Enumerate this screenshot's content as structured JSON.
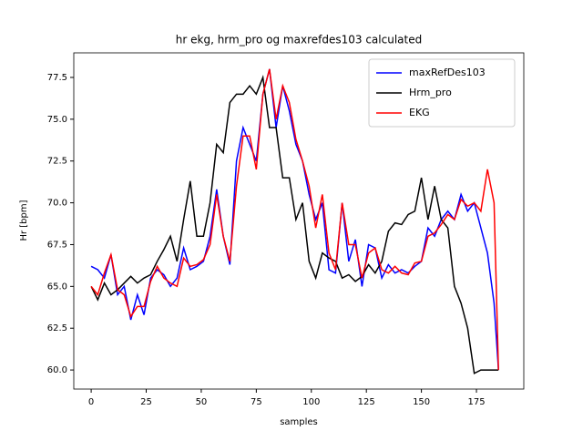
{
  "chart_data": {
    "type": "line",
    "title": "hr ekg, hrm_pro og maxrefdes103 calculated",
    "x_label": "samples",
    "y_label": "Hr [bpm]",
    "x": [
      0,
      3,
      6,
      9,
      12,
      15,
      18,
      21,
      24,
      27,
      30,
      33,
      36,
      39,
      42,
      45,
      48,
      51,
      54,
      57,
      60,
      63,
      66,
      69,
      72,
      75,
      78,
      81,
      84,
      87,
      90,
      93,
      96,
      99,
      102,
      105,
      108,
      111,
      114,
      117,
      120,
      123,
      126,
      129,
      132,
      135,
      138,
      141,
      144,
      147,
      150,
      153,
      156,
      159,
      162,
      165,
      168,
      171,
      174,
      177,
      180,
      183,
      185
    ],
    "series": [
      {
        "name": "maxRefDes103",
        "color": "#0000ff",
        "values": [
          66.2,
          66.0,
          65.5,
          66.9,
          64.5,
          65,
          63,
          64.5,
          63.3,
          65.5,
          66,
          65.7,
          65,
          65.5,
          67.3,
          66,
          66.2,
          66.5,
          68,
          70.8,
          68,
          66.3,
          72.5,
          74.5,
          73.5,
          72.5,
          76.5,
          78,
          74.5,
          77,
          75.5,
          73.5,
          72.5,
          70.5,
          69,
          70,
          66,
          65.8,
          70,
          66.5,
          67.8,
          65,
          67.5,
          67.3,
          65.5,
          66.3,
          65.8,
          66,
          65.8,
          66.2,
          66.5,
          68.5,
          68,
          69,
          69.5,
          69,
          70.5,
          69.5,
          70,
          68.5,
          67,
          64,
          60
        ]
      },
      {
        "name": "Hrm_pro",
        "color": "#000000",
        "values": [
          65,
          64.2,
          65.2,
          64.5,
          64.8,
          65.2,
          65.6,
          65.2,
          65.5,
          65.7,
          66.5,
          67.2,
          68,
          66.5,
          69,
          71.3,
          68,
          68,
          70,
          73.5,
          73,
          76,
          76.5,
          76.5,
          77,
          76.5,
          77.5,
          74.5,
          74.5,
          71.5,
          71.5,
          69,
          70,
          66.5,
          65.5,
          67,
          66.7,
          66.5,
          65.5,
          65.7,
          65.3,
          65.6,
          66.3,
          65.8,
          66.5,
          68.3,
          68.8,
          68.7,
          69.3,
          69.5,
          71.5,
          69,
          71,
          69,
          68.5,
          65,
          64,
          62.5,
          59.8,
          60,
          60,
          60,
          60
        ]
      },
      {
        "name": "EKG",
        "color": "#ff0000",
        "values": [
          65,
          64.5,
          65.8,
          66.9,
          64.8,
          64.5,
          63.2,
          63.8,
          63.8,
          65.3,
          66.2,
          65.5,
          65.2,
          65,
          66.7,
          66.2,
          66.3,
          66.6,
          67.5,
          70.5,
          68,
          66.5,
          71,
          74,
          74,
          72,
          76.5,
          78,
          75,
          77,
          76,
          73.8,
          72.5,
          71,
          68.5,
          70.5,
          67,
          66,
          70,
          67.5,
          67.5,
          65.5,
          67,
          67.3,
          66,
          65.8,
          66.2,
          65.8,
          65.7,
          66.4,
          66.5,
          68,
          68.2,
          68.7,
          69.3,
          69,
          70.2,
          69.8,
          70,
          69.5,
          72,
          70,
          60
        ]
      }
    ],
    "xlim": [
      -7.9,
      196.5
    ],
    "xticks": [
      0,
      25,
      50,
      75,
      100,
      125,
      150,
      175
    ],
    "ylim": [
      58.86,
      78.97
    ],
    "yticks": [
      {
        "value": 60,
        "label": "60.0"
      },
      62.5,
      {
        "value": 65,
        "label": "65.0"
      },
      67.5,
      {
        "value": 70,
        "label": "70.0"
      },
      72.5,
      {
        "value": 75,
        "label": "75.0"
      },
      77.5
    ],
    "legend": "upper right"
  }
}
